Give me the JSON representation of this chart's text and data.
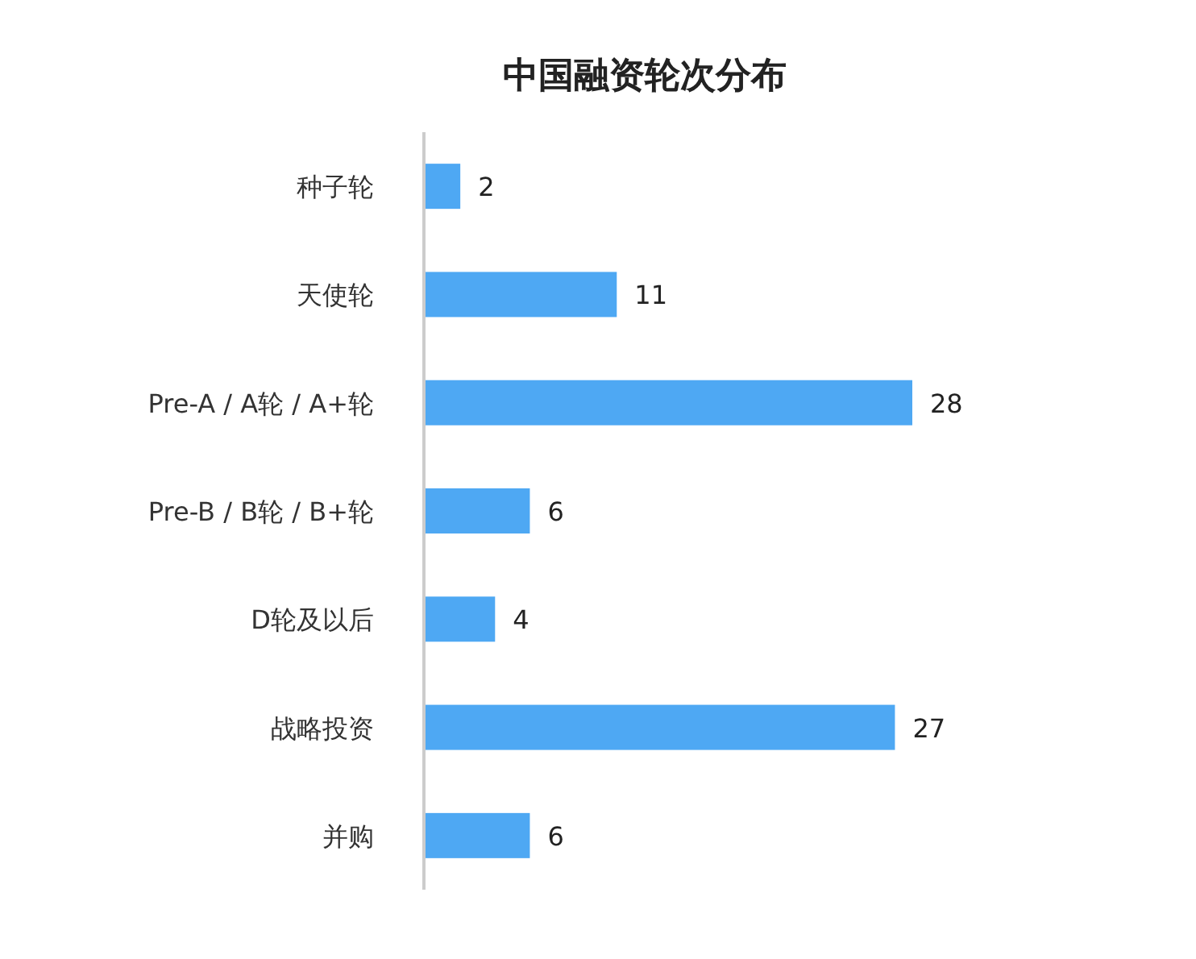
{
  "chart_data": {
    "type": "bar",
    "orientation": "horizontal",
    "title": "中国融资轮次分布",
    "categories": [
      "种子轮",
      "天使轮",
      "Pre-A / A轮 / A+轮",
      "Pre-B / B轮 / B+轮",
      "D轮及以后",
      "战略投资",
      "并购"
    ],
    "values": [
      2,
      11,
      28,
      6,
      4,
      27,
      6
    ],
    "color": "#4ea8f3",
    "data_labels": true
  }
}
